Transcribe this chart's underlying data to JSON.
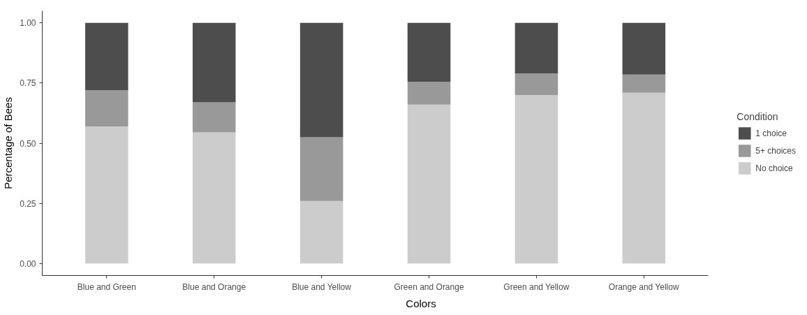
{
  "chart_data": {
    "type": "bar",
    "stacked": true,
    "xlabel": "Colors",
    "ylabel": "Percentage of Bees",
    "legend_title": "Condition",
    "categories": [
      "Blue and Green",
      "Blue and Orange",
      "Blue and Yellow",
      "Green and Orange",
      "Green and Yellow",
      "Orange and Yellow"
    ],
    "series": [
      {
        "name": "No choice",
        "color": "#cccccc",
        "values": [
          0.57,
          0.545,
          0.26,
          0.66,
          0.7,
          0.71
        ]
      },
      {
        "name": "5+ choices",
        "color": "#999999",
        "values": [
          0.15,
          0.125,
          0.265,
          0.095,
          0.09,
          0.075
        ]
      },
      {
        "name": "1 choice",
        "color": "#4d4d4d",
        "values": [
          0.28,
          0.33,
          0.475,
          0.245,
          0.21,
          0.215
        ]
      }
    ],
    "ylim": [
      -0.05,
      1.05
    ],
    "yticks": [
      {
        "value": 0,
        "label": "0.00"
      },
      {
        "value": 0.25,
        "label": "0.25"
      },
      {
        "value": 0.5,
        "label": "0.50"
      },
      {
        "value": 0.75,
        "label": "0.75"
      },
      {
        "value": 1,
        "label": "1.00"
      }
    ],
    "grid": false,
    "legend": "right"
  }
}
